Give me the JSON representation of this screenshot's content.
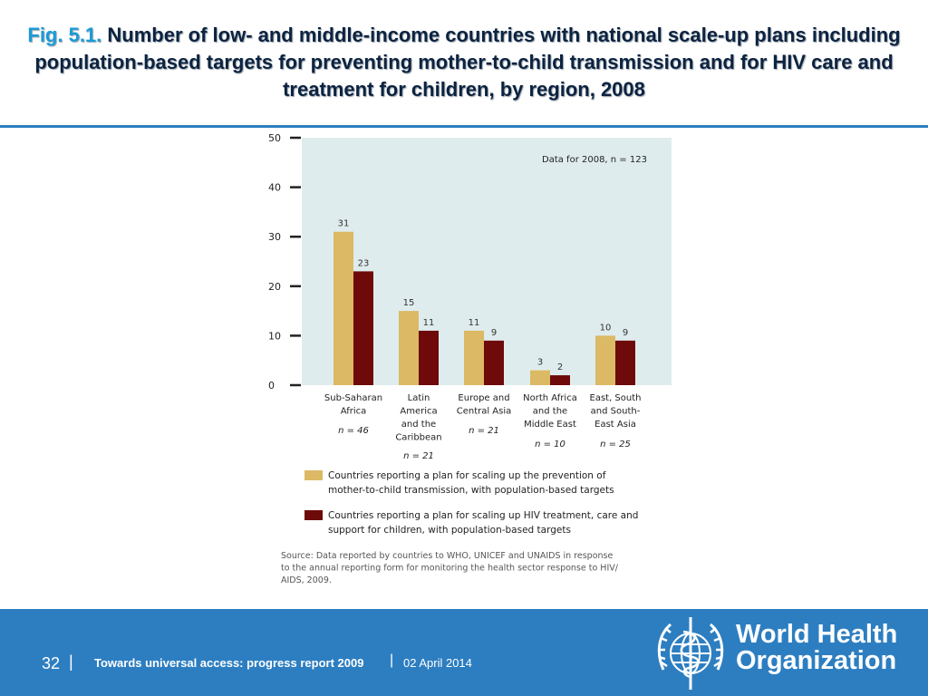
{
  "title": {
    "fig_label": "Fig. 5.1.",
    "text": "Number of low- and middle-income countries with national scale-up plans including population-based targets for preventing mother-to-child transmission and for HIV care and treatment for children, by region, 2008"
  },
  "chart_data": {
    "type": "bar",
    "note": "Data for 2008, n = 123",
    "categories": [
      {
        "lines": [
          "Sub-Saharan",
          "Africa"
        ],
        "n": "n = 46"
      },
      {
        "lines": [
          "Latin",
          "America",
          "and the",
          "Caribbean"
        ],
        "n": "n = 21"
      },
      {
        "lines": [
          "Europe and",
          "Central Asia"
        ],
        "n": "n = 21"
      },
      {
        "lines": [
          "North Africa",
          "and the",
          "Middle East"
        ],
        "n": "n = 10"
      },
      {
        "lines": [
          "East, South",
          "and South-",
          "East Asia"
        ],
        "n": "n = 25"
      }
    ],
    "series": [
      {
        "name": "Countries reporting a plan for scaling up the prevention of mother-to-child transmission, with population-based targets",
        "legend_lines": [
          "Countries reporting a plan for scaling up the prevention of",
          "mother-to-child transmission, with population-based targets"
        ],
        "color": "#dcb964",
        "values": [
          31,
          15,
          11,
          3,
          10
        ]
      },
      {
        "name": "Countries reporting a plan for scaling up HIV treatment, care and support for children, with population-based targets",
        "legend_lines": [
          "Countries reporting a plan for scaling up HIV treatment, care and",
          "support for children, with population-based targets"
        ],
        "color": "#6e0a0a",
        "values": [
          23,
          11,
          9,
          2,
          9
        ]
      }
    ],
    "yticks": [
      0,
      10,
      20,
      30,
      40,
      50
    ],
    "ylim": [
      0,
      50
    ],
    "grid": false,
    "background": "#dfecee",
    "source_lines": [
      "Source: Data reported by countries to WHO, UNICEF and UNAIDS in response",
      "to the annual reporting form for monitoring the health sector response to HIV/",
      "AIDS, 2009."
    ]
  },
  "footer": {
    "page": "32",
    "separator": "|",
    "report": "Towards universal access: progress report 2009",
    "date": "02 April 2014",
    "org_line1": "World Health",
    "org_line2": "Organization",
    "color": "#2d7ec1"
  }
}
